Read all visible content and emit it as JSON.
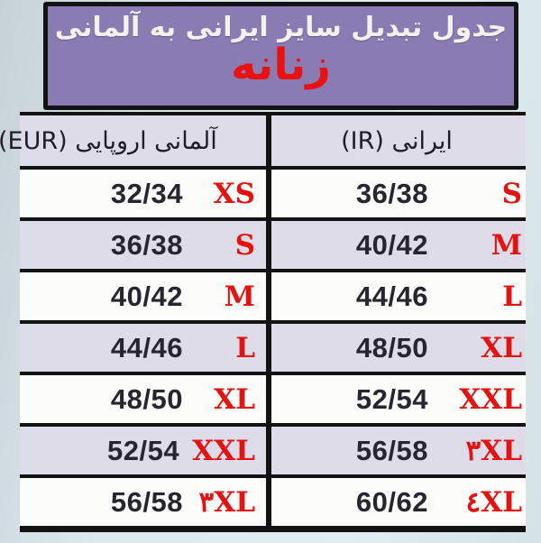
{
  "title": {
    "line1": "جدول تبدیل سایز ایرانی به آلمانی",
    "line2": "زنانه"
  },
  "table": {
    "headers": {
      "eur": "آلمانی اروپایی (EUR)",
      "ir": "ایرانی (IR)"
    },
    "rows": [
      {
        "eur": "32/34",
        "eur_label": "XS",
        "ir": "36/38",
        "ir_label": "S"
      },
      {
        "eur": "36/38",
        "eur_label": "S",
        "ir": "40/42",
        "ir_label": "M"
      },
      {
        "eur": "40/42",
        "eur_label": "M",
        "ir": "44/46",
        "ir_label": "L"
      },
      {
        "eur": "44/46",
        "eur_label": "L",
        "ir": "48/50",
        "ir_label": "XL"
      },
      {
        "eur": "48/50",
        "eur_label": "XL",
        "ir": "52/54",
        "ir_label": "XXL"
      },
      {
        "eur": "52/54",
        "eur_label": "XXL",
        "ir": "56/58",
        "ir_label": "۳XL"
      },
      {
        "eur": "56/58",
        "eur_label": "۳XL",
        "ir": "60/62",
        "ir_label": "٤XL"
      }
    ]
  },
  "colors": {
    "banner_bg": "#8a7bb2",
    "banner_border": "#131313",
    "title_text": "#f3f1ee",
    "accent_red": "#e81310",
    "row_alt_bg": "#dfdcea",
    "row_bg": "#fcfcfa",
    "grid_line": "#131313",
    "number_text": "#26262e",
    "page_bg": "#dde9ec"
  }
}
